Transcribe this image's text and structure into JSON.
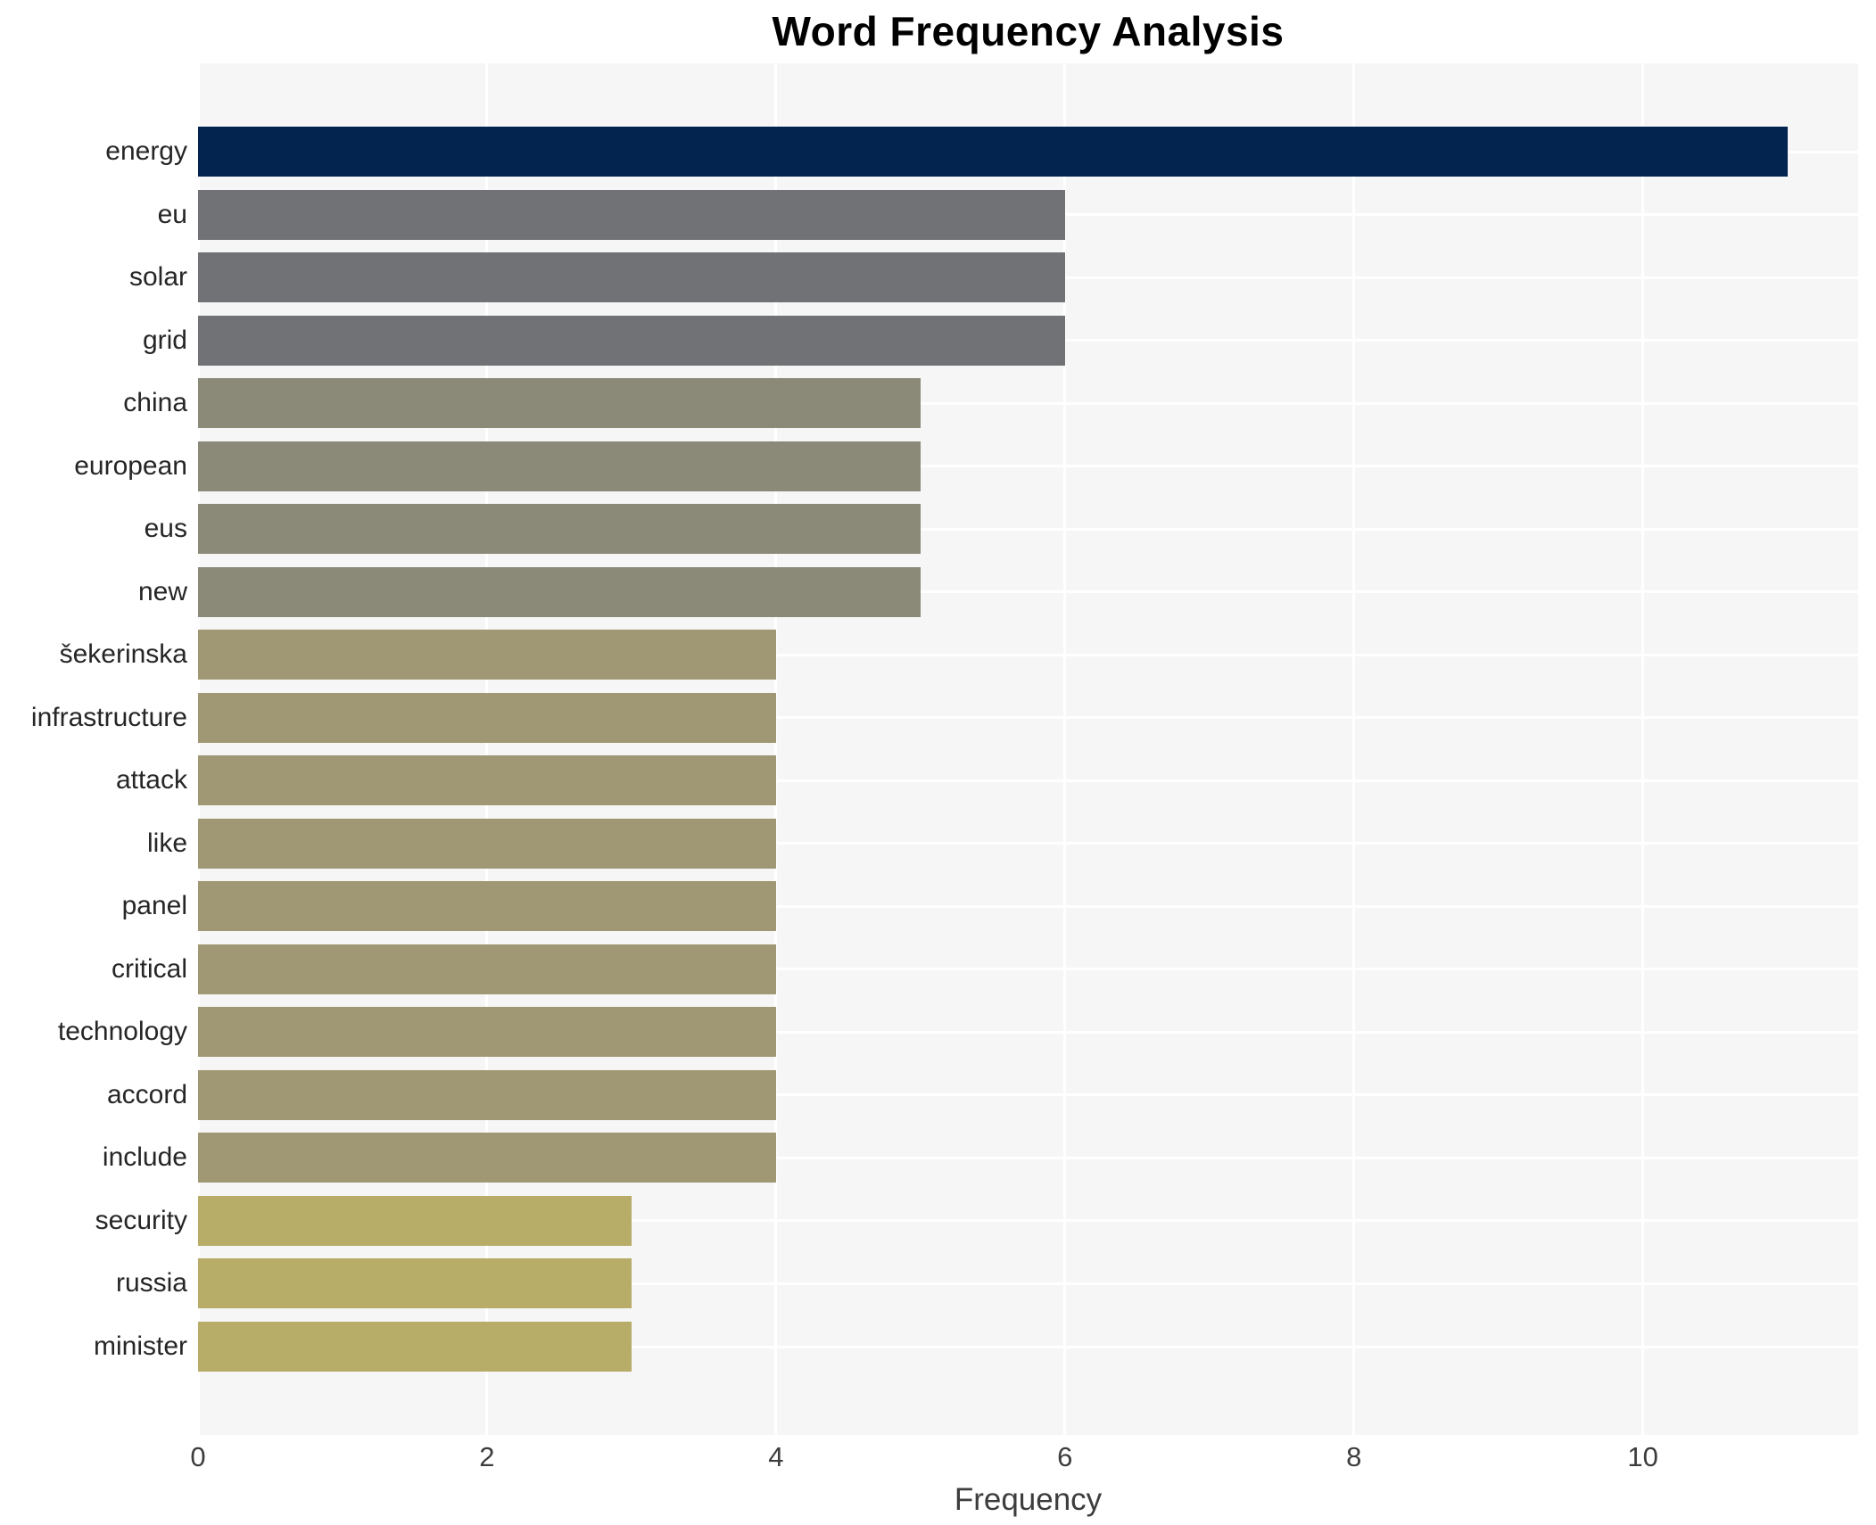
{
  "title": "Word Frequency Analysis",
  "chart_data": {
    "type": "bar",
    "orientation": "horizontal",
    "title": "Word Frequency Analysis",
    "xlabel": "Frequency",
    "ylabel": "",
    "categories": [
      "energy",
      "eu",
      "solar",
      "grid",
      "china",
      "european",
      "eus",
      "new",
      "šekerinska",
      "infrastructure",
      "attack",
      "like",
      "panel",
      "critical",
      "technology",
      "accord",
      "include",
      "security",
      "russia",
      "minister"
    ],
    "values": [
      11,
      6,
      6,
      6,
      5,
      5,
      5,
      5,
      4,
      4,
      4,
      4,
      4,
      4,
      4,
      4,
      4,
      3,
      3,
      3
    ],
    "bar_colors": [
      "#02244e",
      "#717276",
      "#717276",
      "#717276",
      "#8b8977",
      "#8b8977",
      "#8b8977",
      "#8b8977",
      "#a09874",
      "#a09874",
      "#a09874",
      "#a09874",
      "#a09874",
      "#a09874",
      "#a09874",
      "#a09874",
      "#a09874",
      "#b7ac68",
      "#b7ac68",
      "#b7ac68"
    ],
    "xticks": [
      0,
      2,
      4,
      6,
      8,
      10
    ],
    "xlim": [
      0,
      11.49
    ],
    "grid": true,
    "legend": "none",
    "plot_background": "#f6f6f7",
    "gridline_color": "#ffffff",
    "figure_background": "#ffffff",
    "title_color": "#000000",
    "tick_label_color": "#3d3d3d",
    "category_label_color": "#262626"
  }
}
